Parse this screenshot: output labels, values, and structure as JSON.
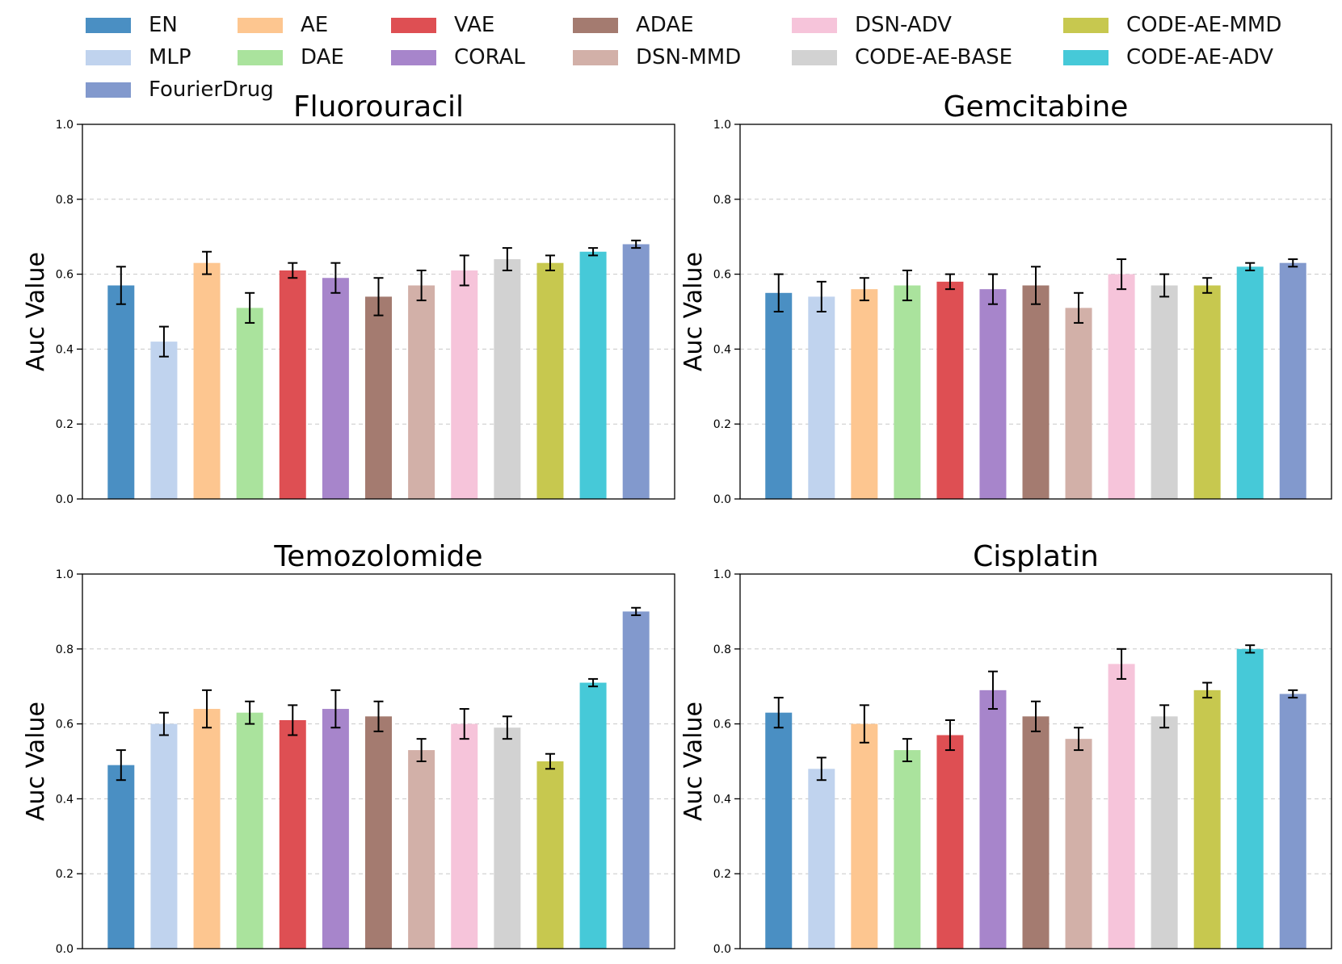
{
  "legend": {
    "items": [
      {
        "label": "EN",
        "color": "#4a8fc3"
      },
      {
        "label": "MLP",
        "color": "#c0d3ee"
      },
      {
        "label": "AE",
        "color": "#fdc690"
      },
      {
        "label": "DAE",
        "color": "#aae39d"
      },
      {
        "label": "VAE",
        "color": "#de4f53"
      },
      {
        "label": "CORAL",
        "color": "#a785cb"
      },
      {
        "label": "ADAE",
        "color": "#a47b70"
      },
      {
        "label": "DSN-MMD",
        "color": "#d2b0a8"
      },
      {
        "label": "DSN-ADV",
        "color": "#f6c4da"
      },
      {
        "label": "CODE-AE-BASE",
        "color": "#d2d2d2"
      },
      {
        "label": "CODE-AE-MMD",
        "color": "#c7c84f"
      },
      {
        "label": "CODE-AE-ADV",
        "color": "#46c9d8"
      },
      {
        "label": "FourierDrug",
        "color": "#8299cd"
      }
    ]
  },
  "chart_data": [
    {
      "type": "bar",
      "title": "Fluorouracil",
      "xlabel": "",
      "ylabel": "Auc Value",
      "ylim": [
        0,
        1.0
      ],
      "yticks": [
        "0.0",
        "0.2",
        "0.4",
        "0.6",
        "0.8",
        "1.0"
      ],
      "grid": "y-dashed",
      "categories": [
        "EN",
        "MLP",
        "AE",
        "DAE",
        "VAE",
        "CORAL",
        "ADAE",
        "DSN-MMD",
        "DSN-ADV",
        "CODE-AE-BASE",
        "CODE-AE-MMD",
        "CODE-AE-ADV",
        "FourierDrug"
      ],
      "values": [
        0.57,
        0.42,
        0.63,
        0.51,
        0.61,
        0.59,
        0.54,
        0.57,
        0.61,
        0.64,
        0.63,
        0.66,
        0.68
      ],
      "errors": [
        0.05,
        0.04,
        0.03,
        0.04,
        0.02,
        0.04,
        0.05,
        0.04,
        0.04,
        0.03,
        0.02,
        0.01,
        0.01
      ]
    },
    {
      "type": "bar",
      "title": "Gemcitabine",
      "xlabel": "",
      "ylabel": "Auc Value",
      "ylim": [
        0,
        1.0
      ],
      "yticks": [
        "0.0",
        "0.2",
        "0.4",
        "0.6",
        "0.8",
        "1.0"
      ],
      "grid": "y-dashed",
      "categories": [
        "EN",
        "MLP",
        "AE",
        "DAE",
        "VAE",
        "CORAL",
        "ADAE",
        "DSN-MMD",
        "DSN-ADV",
        "CODE-AE-BASE",
        "CODE-AE-MMD",
        "CODE-AE-ADV",
        "FourierDrug"
      ],
      "values": [
        0.55,
        0.54,
        0.56,
        0.57,
        0.58,
        0.56,
        0.57,
        0.51,
        0.6,
        0.57,
        0.57,
        0.62,
        0.63
      ],
      "errors": [
        0.05,
        0.04,
        0.03,
        0.04,
        0.02,
        0.04,
        0.05,
        0.04,
        0.04,
        0.03,
        0.02,
        0.01,
        0.01
      ]
    },
    {
      "type": "bar",
      "title": "Temozolomide",
      "xlabel": "",
      "ylabel": "Auc Value",
      "ylim": [
        0,
        1.0
      ],
      "yticks": [
        "0.0",
        "0.2",
        "0.4",
        "0.6",
        "0.8",
        "1.0"
      ],
      "grid": "y-dashed",
      "categories": [
        "EN",
        "MLP",
        "AE",
        "DAE",
        "VAE",
        "CORAL",
        "ADAE",
        "DSN-MMD",
        "DSN-ADV",
        "CODE-AE-BASE",
        "CODE-AE-MMD",
        "CODE-AE-ADV",
        "FourierDrug"
      ],
      "values": [
        0.49,
        0.6,
        0.64,
        0.63,
        0.61,
        0.64,
        0.62,
        0.53,
        0.6,
        0.59,
        0.5,
        0.71,
        0.9
      ],
      "errors": [
        0.04,
        0.03,
        0.05,
        0.03,
        0.04,
        0.05,
        0.04,
        0.03,
        0.04,
        0.03,
        0.02,
        0.01,
        0.01
      ]
    },
    {
      "type": "bar",
      "title": "Cisplatin",
      "xlabel": "",
      "ylabel": "Auc Value",
      "ylim": [
        0,
        1.0
      ],
      "yticks": [
        "0.0",
        "0.2",
        "0.4",
        "0.6",
        "0.8",
        "1.0"
      ],
      "grid": "y-dashed",
      "categories": [
        "EN",
        "MLP",
        "AE",
        "DAE",
        "VAE",
        "CORAL",
        "ADAE",
        "DSN-MMD",
        "DSN-ADV",
        "CODE-AE-BASE",
        "CODE-AE-MMD",
        "CODE-AE-ADV",
        "FourierDrug"
      ],
      "values": [
        0.63,
        0.48,
        0.6,
        0.53,
        0.57,
        0.69,
        0.62,
        0.56,
        0.76,
        0.62,
        0.69,
        0.8,
        0.68
      ],
      "errors": [
        0.04,
        0.03,
        0.05,
        0.03,
        0.04,
        0.05,
        0.04,
        0.03,
        0.04,
        0.03,
        0.02,
        0.01,
        0.01
      ]
    }
  ]
}
